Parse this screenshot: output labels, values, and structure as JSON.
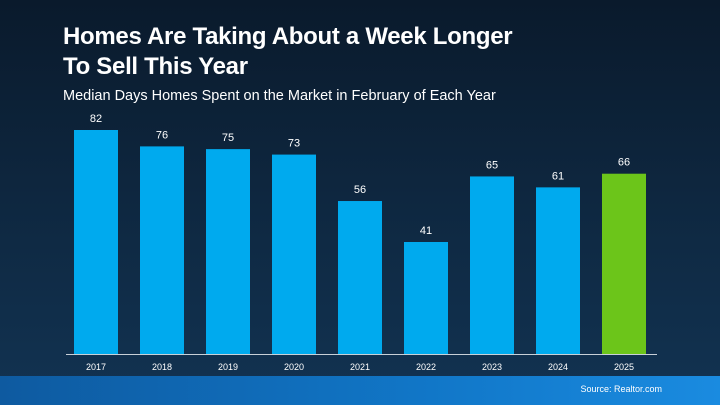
{
  "chart_data": {
    "type": "bar",
    "title": "Homes Are Taking About a Week Longer To Sell This Year",
    "subtitle": "Median Days Homes Spent on the Market in February of Each Year",
    "source": "Source: Realtor.com",
    "categories": [
      "2017",
      "2018",
      "2019",
      "2020",
      "2021",
      "2022",
      "2023",
      "2024",
      "2025"
    ],
    "values": [
      82,
      76,
      75,
      73,
      56,
      41,
      65,
      61,
      66
    ],
    "colors": [
      "#00aaee",
      "#00aaee",
      "#00aaee",
      "#00aaee",
      "#00aaee",
      "#00aaee",
      "#00aaee",
      "#00aaee",
      "#6cc51a"
    ]
  }
}
